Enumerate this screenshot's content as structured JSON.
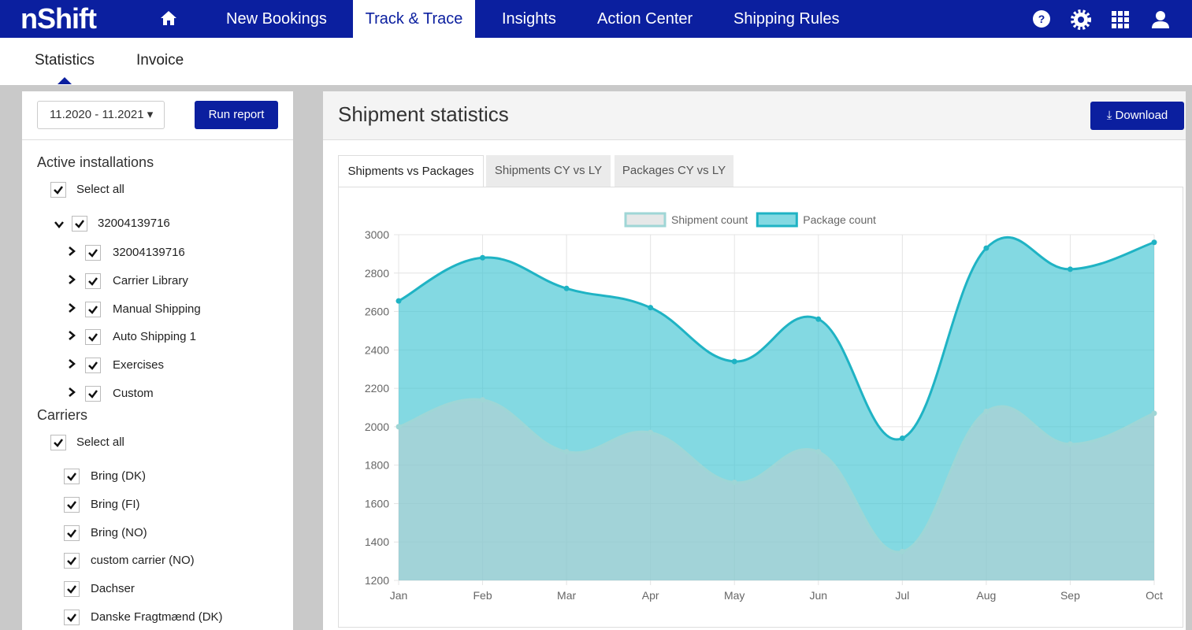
{
  "nav": {
    "logo": "nShift",
    "items": [
      "New Bookings",
      "Track & Trace",
      "Insights",
      "Action Center",
      "Shipping Rules"
    ]
  },
  "subnav": [
    "Statistics",
    "Invoice"
  ],
  "filters": {
    "period": "11.2020 - 11.2021",
    "run": "Run report"
  },
  "installations": {
    "title": "Active installations",
    "select_all": "Select all",
    "root": "32004139716",
    "children": [
      "32004139716",
      "Carrier Library",
      "Manual Shipping",
      "Auto Shipping 1",
      "Exercises",
      "Custom"
    ]
  },
  "carriers": {
    "title": "Carriers",
    "select_all": "Select all",
    "items": [
      "Bring (DK)",
      "Bring (FI)",
      "Bring (NO)",
      "custom carrier (NO)",
      "Dachser",
      "Danske Fragtmænd (DK)"
    ]
  },
  "panel": {
    "title": "Shipment statistics",
    "download": "Download",
    "tabs": [
      "Shipments vs Packages",
      "Shipments CY vs LY",
      "Packages CY vs LY"
    ]
  },
  "chart_data": {
    "type": "area",
    "categories": [
      "Jan",
      "Feb",
      "Mar",
      "Apr",
      "May",
      "Jun",
      "Jul",
      "Aug",
      "Sep",
      "Oct"
    ],
    "series": [
      {
        "name": "Shipment count",
        "color": "#9fd6d6",
        "fill": "rgba(200,205,205,0.45)",
        "values": [
          2000,
          2140,
          1870,
          1970,
          1710,
          1870,
          1350,
          2080,
          1910,
          2070
        ]
      },
      {
        "name": "Package count",
        "color": "#1fb3c4",
        "fill": "rgba(64,196,210,0.65)",
        "values": [
          2655,
          2880,
          2720,
          2620,
          2340,
          2560,
          1940,
          2930,
          2820,
          2960
        ]
      }
    ],
    "ylim": [
      1200,
      3000
    ],
    "yticks": [
      1200,
      1400,
      1600,
      1800,
      2000,
      2200,
      2400,
      2600,
      2800,
      3000
    ],
    "grid": true
  }
}
